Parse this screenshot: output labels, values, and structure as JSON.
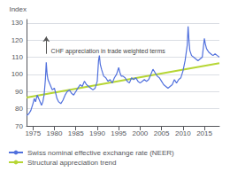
{
  "chart_data": {
    "type": "line",
    "ylabel": "Index",
    "xlim": [
      1973.5,
      2018.5
    ],
    "ylim": [
      70,
      132
    ],
    "xticks": [
      1975,
      1980,
      1985,
      1990,
      1995,
      2000,
      2005,
      2010,
      2015
    ],
    "yticks": [
      70,
      80,
      90,
      100,
      110,
      120,
      130
    ],
    "grid": true,
    "legend": "lower left",
    "annotations": [
      {
        "text": "CHF appreciation in trade weighted terms",
        "x": 1979.2,
        "y": 113.5,
        "arrow_x": 1978.1,
        "arrow_from": 112,
        "arrow_to": 122
      }
    ],
    "series": [
      {
        "name": "Swiss nominal effective exchange rate (NEER)",
        "x": [
          1973.5,
          1974.0,
          1974.5,
          1975.0,
          1975.3,
          1975.6,
          1976.0,
          1976.5,
          1977.0,
          1977.3,
          1977.6,
          1977.9,
          1978.1,
          1978.3,
          1978.5,
          1979.0,
          1979.5,
          1980.0,
          1980.3,
          1980.6,
          1981.0,
          1981.5,
          1982.0,
          1982.5,
          1983.0,
          1983.5,
          1984.0,
          1984.5,
          1985.0,
          1985.5,
          1986.0,
          1986.5,
          1987.0,
          1987.5,
          1988.0,
          1988.5,
          1989.0,
          1989.5,
          1990.0,
          1990.3,
          1990.5,
          1990.7,
          1991.0,
          1991.5,
          1992.0,
          1992.5,
          1993.0,
          1993.5,
          1994.0,
          1994.5,
          1995.0,
          1995.3,
          1995.6,
          1996.0,
          1996.5,
          1997.0,
          1997.5,
          1998.0,
          1998.5,
          1999.0,
          1999.5,
          2000.0,
          2000.5,
          2001.0,
          2001.5,
          2002.0,
          2002.5,
          2003.0,
          2003.5,
          2004.0,
          2004.5,
          2005.0,
          2005.5,
          2006.0,
          2006.5,
          2007.0,
          2007.5,
          2008.0,
          2008.5,
          2009.0,
          2009.5,
          2010.0,
          2010.5,
          2011.0,
          2011.2,
          2011.4,
          2011.6,
          2012.0,
          2012.5,
          2013.0,
          2013.5,
          2014.0,
          2014.5,
          2015.0,
          2015.2,
          2015.5,
          2016.0,
          2016.5,
          2017.0,
          2017.5,
          2018.0,
          2018.5
        ],
        "values": [
          76.0,
          77.0,
          79.0,
          83.0,
          86.0,
          84.0,
          88.0,
          85.0,
          82.0,
          84.0,
          88.0,
          97.0,
          107.0,
          100.0,
          97.0,
          94.0,
          91.0,
          92.0,
          89.0,
          86.0,
          84.0,
          83.0,
          85.0,
          88.0,
          90.0,
          91.0,
          89.0,
          88.0,
          90.0,
          92.0,
          94.0,
          93.0,
          96.0,
          94.0,
          93.0,
          92.0,
          91.0,
          92.0,
          96.0,
          108.0,
          111.0,
          106.0,
          103.0,
          99.0,
          98.0,
          96.0,
          97.0,
          95.0,
          98.0,
          100.0,
          104.0,
          101.0,
          99.0,
          99.0,
          98.0,
          96.0,
          95.0,
          98.0,
          97.0,
          98.0,
          96.0,
          95.0,
          96.0,
          97.0,
          96.0,
          97.0,
          100.0,
          103.0,
          101.0,
          99.0,
          98.0,
          96.0,
          94.0,
          93.0,
          92.0,
          93.0,
          94.0,
          97.0,
          95.0,
          97.0,
          98.0,
          102.0,
          108.0,
          117.0,
          128.0,
          120.0,
          114.0,
          111.0,
          110.0,
          109.0,
          108.0,
          109.0,
          110.0,
          121.0,
          118.0,
          115.0,
          113.0,
          112.0,
          111.0,
          112.0,
          111.0,
          110.0
        ]
      },
      {
        "name": "Structural appreciation trend",
        "x": [
          1973.5,
          2018.5
        ],
        "values": [
          86.5,
          106.5
        ]
      }
    ]
  }
}
